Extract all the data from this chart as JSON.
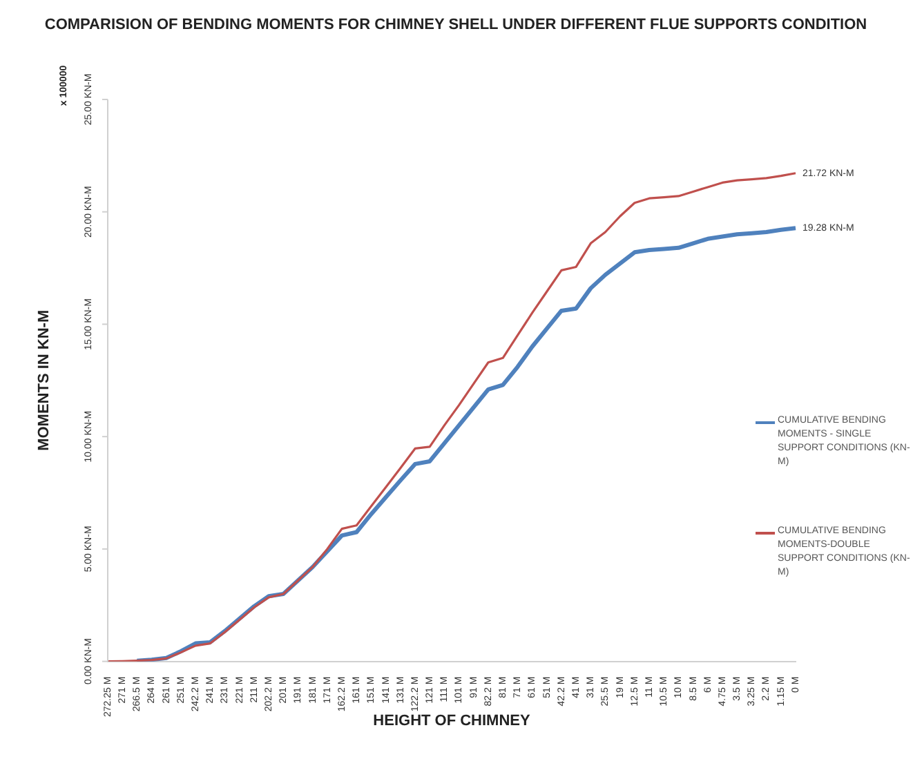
{
  "chart_data": {
    "type": "line",
    "title": "COMPARISION OF BENDING MOMENTS FOR CHIMNEY SHELL UNDER DIFFERENT FLUE SUPPORTS CONDITION",
    "xlabel": "HEIGHT OF CHIMNEY",
    "ylabel": "MOMENTS IN KN-M",
    "annotations": [
      "x 100000"
    ],
    "categories": [
      "272.25 M",
      "271 M",
      "266.5 M",
      "264 M",
      "261 M",
      "251 M",
      "242.2 M",
      "241 M",
      "231 M",
      "221 M",
      "211 M",
      "202.2 M",
      "201 M",
      "191 M",
      "181 M",
      "171 M",
      "162.2 M",
      "161 M",
      "151 M",
      "141 M",
      "131 M",
      "122.2 M",
      "121 M",
      "111 M",
      "101 M",
      "91 M",
      "82.2 M",
      "81 M",
      "71 M",
      "61 M",
      "51 M",
      "42.2 M",
      "41 M",
      "31 M",
      "25.5 M",
      "19 M",
      "12.5 M",
      "11 M",
      "10.5 M",
      "10 M",
      "8.5 M",
      "6 M",
      "4.75 M",
      "3.5 M",
      "3.25 M",
      "2.2 M",
      "1.15 M",
      "0 M"
    ],
    "series": [
      {
        "name": "CUMULATIVE BENDING MOMENTS - SINGLE SUPPORT CONDITIONS (KN-M)",
        "color": "#4f81bd",
        "values": [
          null,
          null,
          0.03,
          0.07,
          0.15,
          0.45,
          0.8,
          0.85,
          1.35,
          1.9,
          2.45,
          2.9,
          3.0,
          3.6,
          4.2,
          4.9,
          5.6,
          5.75,
          6.55,
          7.3,
          8.05,
          8.78,
          8.9,
          9.7,
          10.5,
          11.3,
          12.1,
          12.3,
          13.1,
          14.0,
          14.8,
          15.6,
          15.7,
          16.6,
          17.2,
          17.7,
          18.2,
          18.3,
          18.35,
          18.4,
          18.6,
          18.8,
          18.9,
          19.0,
          19.05,
          19.1,
          19.2,
          19.28
        ],
        "value_labels": [
          null,
          null,
          null,
          null,
          null,
          null,
          null,
          null,
          null,
          null,
          null,
          null,
          null,
          null,
          null,
          null,
          null,
          null,
          null,
          null,
          null,
          null,
          null,
          null,
          null,
          null,
          null,
          null,
          null,
          null,
          null,
          null,
          null,
          null,
          null,
          null,
          null,
          null,
          null,
          null,
          null,
          null,
          null,
          null,
          null,
          null,
          null,
          "19.28 KN-M"
        ]
      },
      {
        "name": "CUMULATIVE BENDING MOMENTS-DOUBLE SUPPORT CONDITIONS (KN-M)",
        "color": "#c0504d",
        "values": [
          0,
          0.01,
          0.03,
          0.06,
          0.13,
          0.4,
          0.7,
          0.8,
          1.3,
          1.85,
          2.4,
          2.85,
          3.0,
          3.6,
          4.2,
          5.0,
          5.9,
          6.05,
          6.9,
          7.75,
          8.6,
          9.47,
          9.55,
          10.5,
          11.4,
          12.35,
          13.3,
          13.5,
          14.5,
          15.5,
          16.45,
          17.4,
          17.55,
          18.6,
          19.1,
          19.8,
          20.4,
          20.6,
          20.65,
          20.7,
          20.9,
          21.1,
          21.3,
          21.4,
          21.45,
          21.5,
          21.6,
          21.72
        ],
        "value_labels": [
          null,
          null,
          null,
          null,
          null,
          null,
          null,
          null,
          null,
          null,
          null,
          null,
          null,
          null,
          null,
          null,
          null,
          null,
          null,
          null,
          null,
          null,
          null,
          null,
          null,
          null,
          null,
          null,
          null,
          null,
          null,
          null,
          null,
          null,
          null,
          null,
          null,
          null,
          null,
          null,
          null,
          null,
          null,
          null,
          null,
          null,
          null,
          "21.72 KN-M"
        ]
      }
    ],
    "ylim": [
      0,
      25
    ],
    "yticks": [
      {
        "value": 0,
        "label": "0.00 KN-M"
      },
      {
        "value": 5,
        "label": "5.00 KN-M"
      },
      {
        "value": 10,
        "label": "10.00 KN-M"
      },
      {
        "value": 15,
        "label": "15.00 KN-M"
      },
      {
        "value": 20,
        "label": "20.00 KN-M"
      },
      {
        "value": 25,
        "label": "25.00 KN-M"
      }
    ],
    "grid": false,
    "legend": "right",
    "marker": "none",
    "line_style": "solid"
  }
}
